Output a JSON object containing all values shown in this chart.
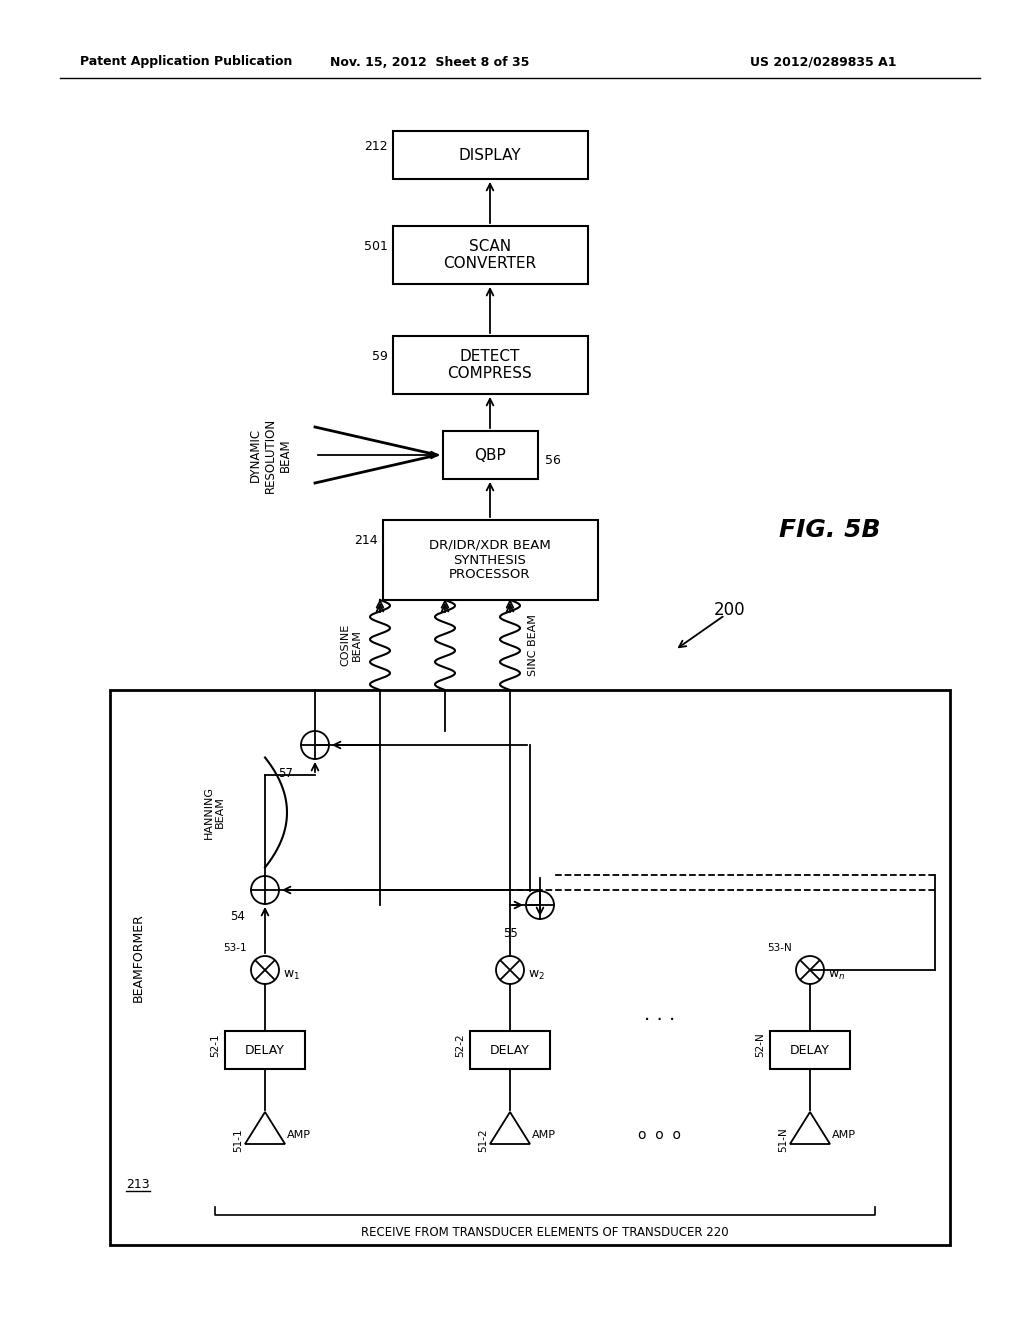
{
  "title_left": "Patent Application Publication",
  "title_mid": "Nov. 15, 2012  Sheet 8 of 35",
  "title_right": "US 2012/0289835 A1",
  "fig_label": "FIG. 5B",
  "fig_number": "200",
  "background": "#ffffff",
  "bottom_label": "RECEIVE FROM TRANSDUCER ELEMENTS OF TRANSDUCER 220",
  "beamformer_label": "BEAMFORMER",
  "beamformer_ref": "213",
  "display_label": "DISPLAY",
  "display_ref": "212",
  "scan_label": "SCAN\nCONVERTER",
  "scan_ref": "501",
  "detect_label": "DETECT\nCOMPRESS",
  "detect_ref": "59",
  "qbp_label": "QBP",
  "qbp_ref": "56",
  "dr_label": "DR/IDR/XDR BEAM\nSYNTHESIS\nPROCESSOR",
  "dr_ref": "214",
  "dynamic_label": "DYNAMIC\nRESOLUTION\nBEAM",
  "cosine_label": "COSINE\nBEAM",
  "sinc_label": "SINC BEAM",
  "hanning_label": "HANNING\nBEAM"
}
